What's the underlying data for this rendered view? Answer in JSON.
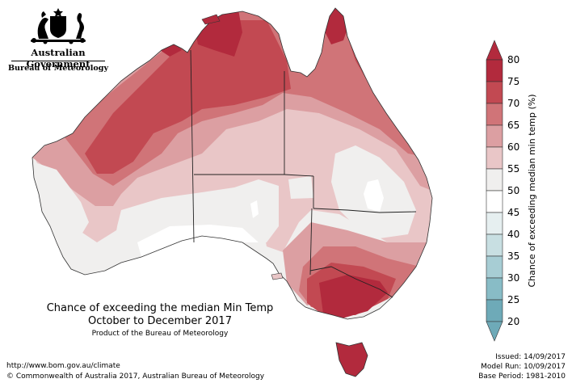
{
  "logo": {
    "government": "Australian Government",
    "bureau": "Bureau of Meteorology",
    "icon": "coat-of-arms-icon"
  },
  "titles": {
    "line1": "Chance of exceeding the median Min Temp",
    "line2": "October to December 2017",
    "line3": "Product of the Bureau of Meteorology"
  },
  "footer": {
    "url": "http://www.bom.gov.au/climate",
    "copyright": "© Commonwealth of Australia 2017, Australian Bureau of Meteorology"
  },
  "info": {
    "issued": "Issued: 14/09/2017",
    "model_run": "Model Run: 10/09/2017",
    "base_period": "Base Period: 1981-2010"
  },
  "legend": {
    "title": "Chance of exceeding median min temp (%)",
    "ticks": [
      "80",
      "75",
      "70",
      "65",
      "60",
      "55",
      "50",
      "45",
      "40",
      "35",
      "30",
      "25",
      "20"
    ],
    "colors": {
      "75-80": "#b22a3d",
      "70-75": "#c24952",
      "65-70": "#d07478",
      "60-65": "#dc9fa2",
      "55-60": "#e9c6c7",
      "50-55": "#f0efee",
      "45-50": "#ffffff",
      "40-45": "#e6eff0",
      "35-40": "#c8dfe2",
      "30-35": "#a7cdd4",
      "25-30": "#88bcc6",
      "20-25": "#6eaab8"
    }
  }
}
